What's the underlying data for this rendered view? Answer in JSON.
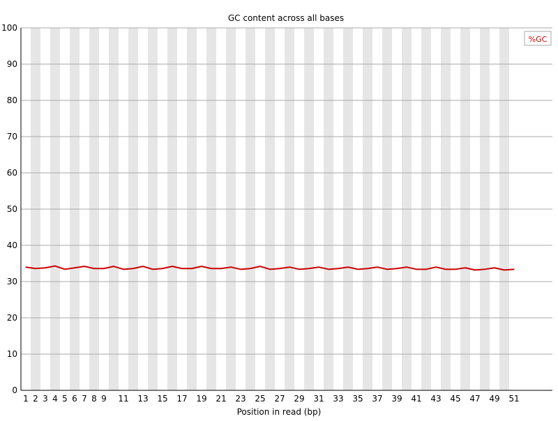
{
  "chart_data": {
    "type": "line",
    "title": "GC content across all bases",
    "xlabel": "Position in read (bp)",
    "ylabel": "",
    "ylim": [
      0,
      100
    ],
    "yticks": [
      0,
      10,
      20,
      30,
      40,
      50,
      60,
      70,
      80,
      90,
      100
    ],
    "x": [
      1,
      2,
      3,
      4,
      5,
      6,
      7,
      8,
      9,
      10,
      11,
      12,
      13,
      14,
      15,
      16,
      17,
      18,
      19,
      20,
      21,
      22,
      23,
      24,
      25,
      26,
      27,
      28,
      29,
      30,
      31,
      32,
      33,
      34,
      35,
      36,
      37,
      38,
      39,
      40,
      41,
      42,
      43,
      44,
      45,
      46,
      47,
      48,
      49,
      50,
      51
    ],
    "xtick_labels": [
      "1",
      "2",
      "3",
      "4",
      "5",
      "6",
      "7",
      "8",
      "9",
      "11",
      "13",
      "15",
      "17",
      "19",
      "21",
      "23",
      "25",
      "27",
      "29",
      "31",
      "33",
      "35",
      "37",
      "39",
      "41",
      "43",
      "45",
      "47",
      "49",
      "51"
    ],
    "xtick_positions": [
      1,
      2,
      3,
      4,
      5,
      6,
      7,
      8,
      9,
      11,
      13,
      15,
      17,
      19,
      21,
      23,
      25,
      27,
      29,
      31,
      33,
      35,
      37,
      39,
      41,
      43,
      45,
      47,
      49,
      51
    ],
    "series": [
      {
        "name": "%GC",
        "color": "#cc0000",
        "values": [
          34.0,
          33.6,
          33.8,
          34.3,
          33.4,
          33.8,
          34.2,
          33.6,
          33.6,
          34.2,
          33.4,
          33.6,
          34.2,
          33.4,
          33.6,
          34.2,
          33.6,
          33.6,
          34.2,
          33.6,
          33.6,
          34.0,
          33.4,
          33.6,
          34.2,
          33.4,
          33.6,
          34.0,
          33.4,
          33.6,
          34.0,
          33.4,
          33.6,
          34.0,
          33.4,
          33.6,
          34.0,
          33.4,
          33.6,
          34.0,
          33.4,
          33.4,
          34.0,
          33.4,
          33.4,
          33.8,
          33.2,
          33.4,
          33.8,
          33.2,
          33.4
        ]
      }
    ],
    "legend": {
      "label": "%GC",
      "placement": "top-right"
    },
    "grid": true,
    "band_color": "#e6e6e6",
    "grid_color": "#aaaaaa"
  }
}
